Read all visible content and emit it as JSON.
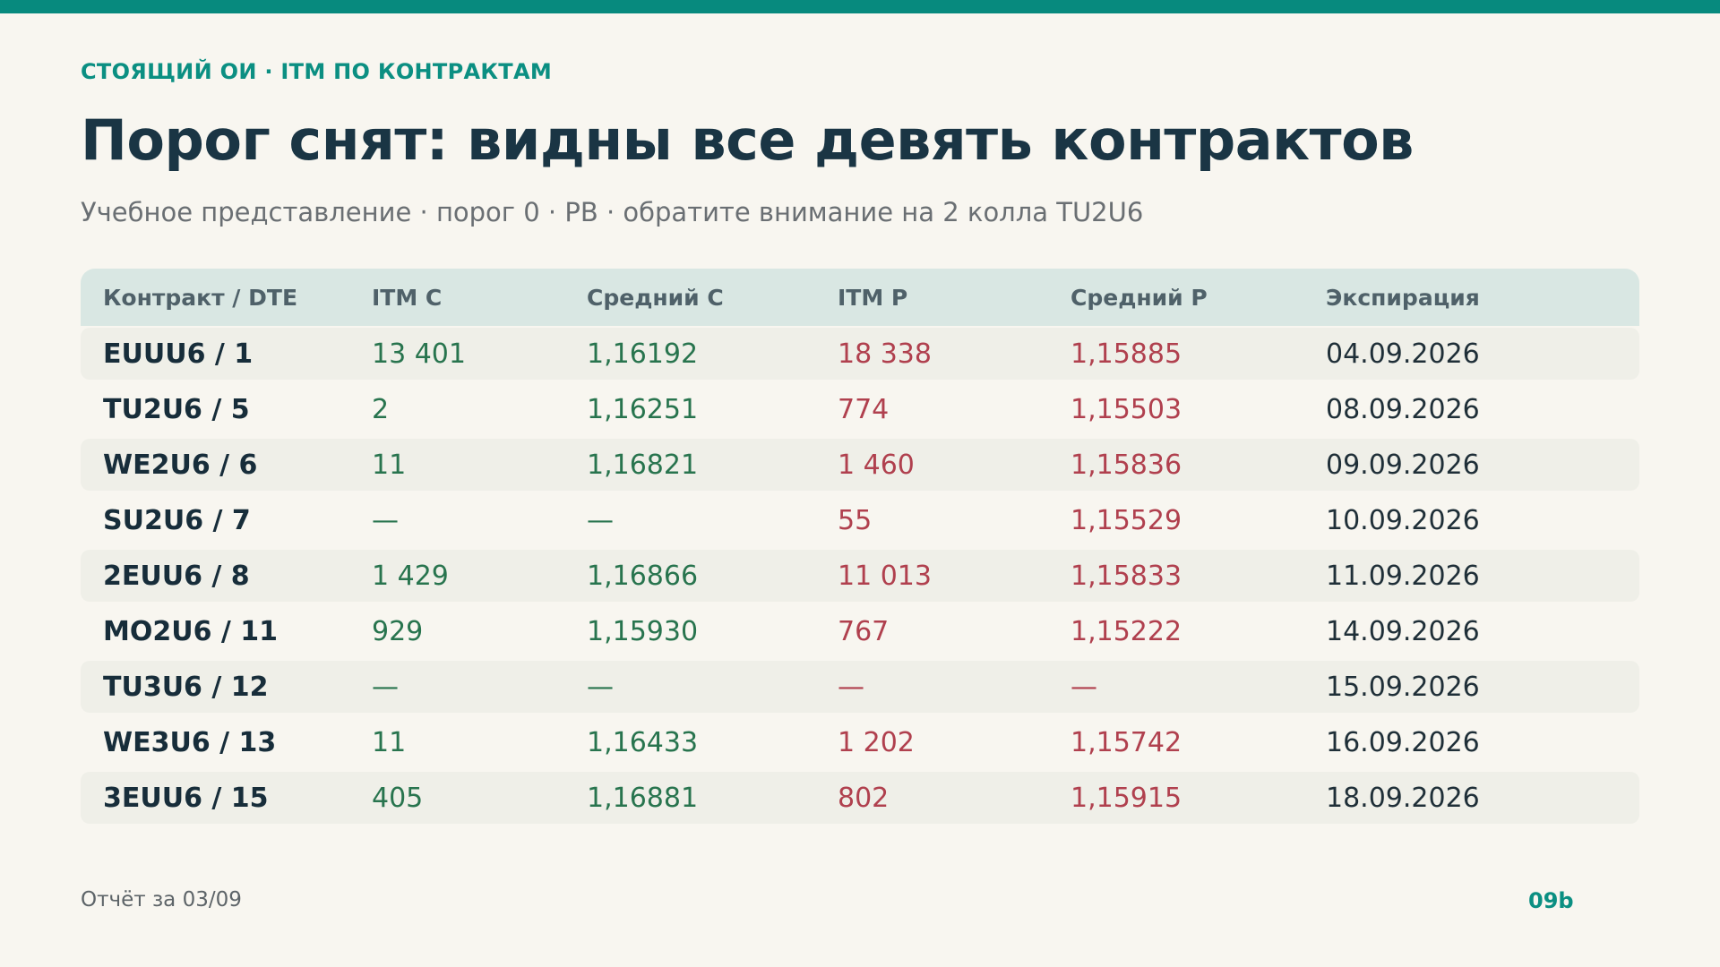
{
  "header": {
    "eyebrow": "СТОЯЩИЙ ОИ · ITM ПО КОНТРАКТАМ",
    "title": "Порог снят: видны все девять контрактов",
    "subtitle": "Учебное представление · порог 0 · PB · обратите внимание на 2 колла TU2U6"
  },
  "colors": {
    "accent": "#078a7e",
    "calls": "#28744e",
    "puts": "#b0404e",
    "title": "#1a3544"
  },
  "table": {
    "columns": [
      "Контракт / DTE",
      "ITM C",
      "Средний C",
      "ITM P",
      "Средний P",
      "Экспирация"
    ],
    "rows": [
      [
        "EUUU6 / 1",
        "13 401",
        "1,16192",
        "18 338",
        "1,15885",
        "04.09.2026"
      ],
      [
        "TU2U6 / 5",
        "2",
        "1,16251",
        "774",
        "1,15503",
        "08.09.2026"
      ],
      [
        "WE2U6 / 6",
        "11",
        "1,16821",
        "1 460",
        "1,15836",
        "09.09.2026"
      ],
      [
        "SU2U6 / 7",
        "—",
        "—",
        "55",
        "1,15529",
        "10.09.2026"
      ],
      [
        "2EUU6 / 8",
        "1 429",
        "1,16866",
        "11 013",
        "1,15833",
        "11.09.2026"
      ],
      [
        "MO2U6 / 11",
        "929",
        "1,15930",
        "767",
        "1,15222",
        "14.09.2026"
      ],
      [
        "TU3U6 / 12",
        "—",
        "—",
        "—",
        "—",
        "15.09.2026"
      ],
      [
        "WE3U6 / 13",
        "11",
        "1,16433",
        "1 202",
        "1,15742",
        "16.09.2026"
      ],
      [
        "3EUU6 / 15",
        "405",
        "1,16881",
        "802",
        "1,15915",
        "18.09.2026"
      ]
    ]
  },
  "footer": {
    "report": "Отчёт за 03/09",
    "page": "09b"
  }
}
